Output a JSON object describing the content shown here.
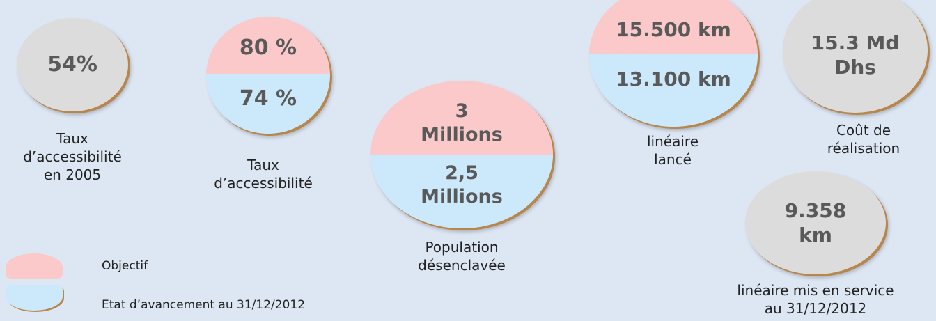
{
  "colors": {
    "objectif": "#fbc9c9",
    "avancement": "#cbe9fb",
    "neutral": "#dcdcdc",
    "background": "#dde6f3"
  },
  "items": {
    "taux2005": {
      "value": "54%",
      "caption": "Taux\nd’accessibilité\nen 2005"
    },
    "taux": {
      "objectif": "80 %",
      "avancement": "74 %",
      "caption": "Taux\nd’accessibilité"
    },
    "population": {
      "objectif": "3\nMillions",
      "avancement": "2,5\nMillions",
      "caption": "Population\ndésenclavée"
    },
    "lineaire": {
      "objectif": "15.500 km",
      "avancement": "13.100 km",
      "caption": "linéaire\nlancé"
    },
    "cout": {
      "value": "15.3 Md\nDhs",
      "caption": "Coût de\nréalisation"
    },
    "service": {
      "value": "9.358\nkm",
      "caption": "linéaire mis en service\nau 31/12/2012"
    }
  },
  "legend": {
    "objectif": "Objectif",
    "avancement": "Etat d’avancement au 31/12/2012"
  }
}
